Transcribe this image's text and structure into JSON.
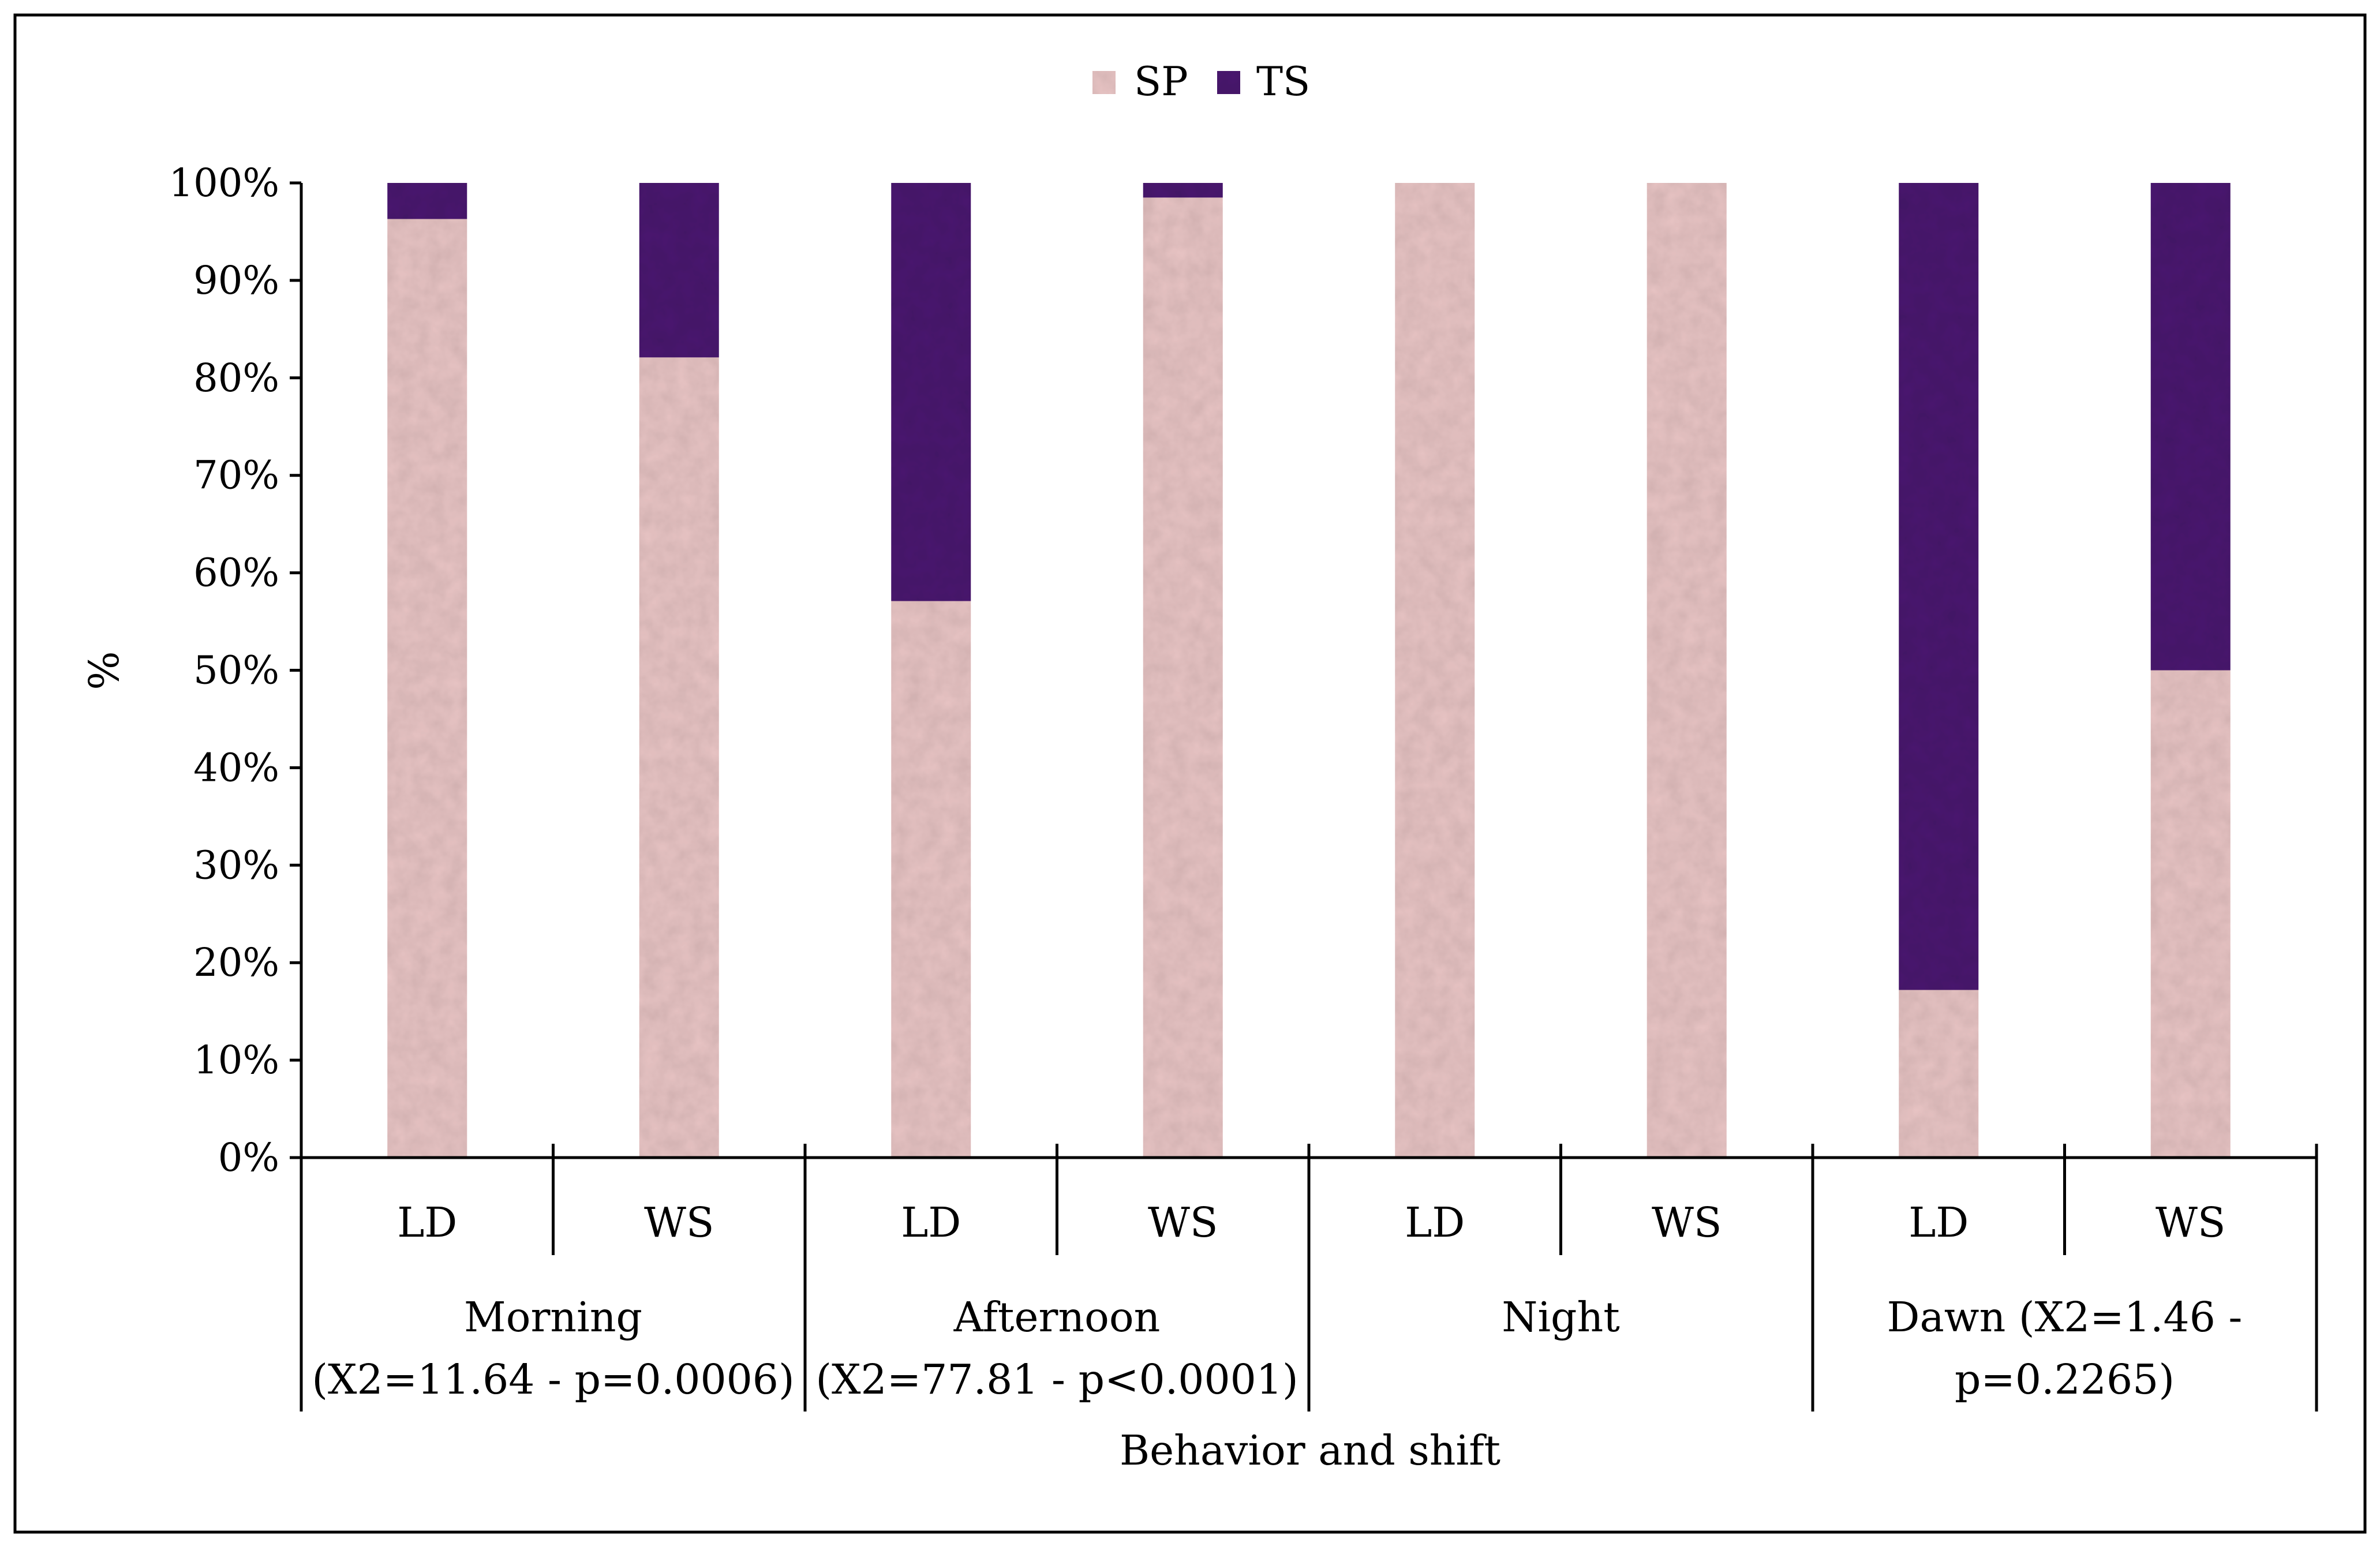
{
  "chart_data": {
    "type": "stacked_bar_100",
    "title": "",
    "xlabel": "Behavior and shift",
    "ylabel": "%",
    "ylim": [
      0,
      100
    ],
    "yticks": [
      "0%",
      "10%",
      "20%",
      "30%",
      "40%",
      "50%",
      "60%",
      "70%",
      "80%",
      "90%",
      "100%"
    ],
    "legend": {
      "position": "top-center",
      "entries": [
        "SP",
        "TS"
      ]
    },
    "categories": [
      "LD",
      "WS",
      "LD",
      "WS",
      "LD",
      "WS",
      "LD",
      "WS"
    ],
    "groups": [
      {
        "line1": "Morning",
        "line2": "(X2=11.64 -  p=0.0006)"
      },
      {
        "line1": "Afternoon",
        "line2": "(X2=77.81 - p<0.0001)"
      },
      {
        "line1": "Night",
        "line2": ""
      },
      {
        "line1": "Dawn (X2=1.46 -",
        "line2": "p=0.2265)"
      }
    ],
    "series": [
      {
        "name": "SP",
        "color": "#e8c4c4",
        "values": [
          96.3,
          82.1,
          57.1,
          98.5,
          100,
          100,
          17.2,
          50.0
        ]
      },
      {
        "name": "TS",
        "color": "#4a1670",
        "values": [
          3.7,
          17.9,
          42.9,
          1.5,
          0,
          0,
          82.8,
          50.0
        ]
      }
    ]
  }
}
